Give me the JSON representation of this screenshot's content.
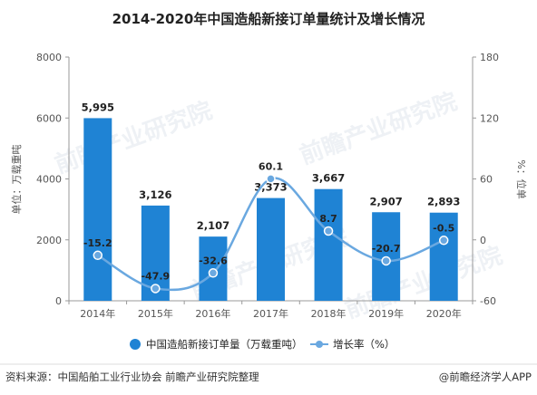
{
  "chart_data": {
    "type": "bar",
    "title": "2014-2020年中国造船新接订单量统计及增长情况",
    "categories": [
      "2014年",
      "2015年",
      "2016年",
      "2017年",
      "2018年",
      "2019年",
      "2020年"
    ],
    "series": [
      {
        "name": "中国造船新接订单量（万载重吨）",
        "type": "bar",
        "axis": "left",
        "color": "#1f83d4",
        "values": [
          5995,
          3126,
          2107,
          3373,
          3667,
          2907,
          2893
        ],
        "labels": [
          "5,995",
          "3,126",
          "2,107",
          "3,373",
          "3,667",
          "2,907",
          "2,893"
        ]
      },
      {
        "name": "增长率（%）",
        "type": "line",
        "axis": "right",
        "color": "#6aa8e0",
        "values": [
          -15.2,
          -47.9,
          -32.6,
          60.1,
          8.7,
          -20.7,
          -0.5
        ],
        "labels": [
          "-15.2",
          "-47.9",
          "-32.6",
          "60.1",
          "8.7",
          "-20.7",
          "-0.5"
        ]
      }
    ],
    "ylabel": "单位：万载重吨",
    "y2label": "%：位单",
    "ylim": [
      0,
      8000
    ],
    "y2lim": [
      -60,
      180
    ],
    "yticks": [
      "0",
      "2000",
      "4000",
      "6000",
      "8000"
    ],
    "y2ticks": [
      "-60",
      "0",
      "60",
      "120",
      "180"
    ],
    "grid": false,
    "legend": "bottom"
  },
  "footer": {
    "source": "资料来源：中国船舶工业行业协会 前瞻产业研究院整理",
    "brand": "@前瞻经济学人APP"
  },
  "watermark": "前瞻产业研究院"
}
